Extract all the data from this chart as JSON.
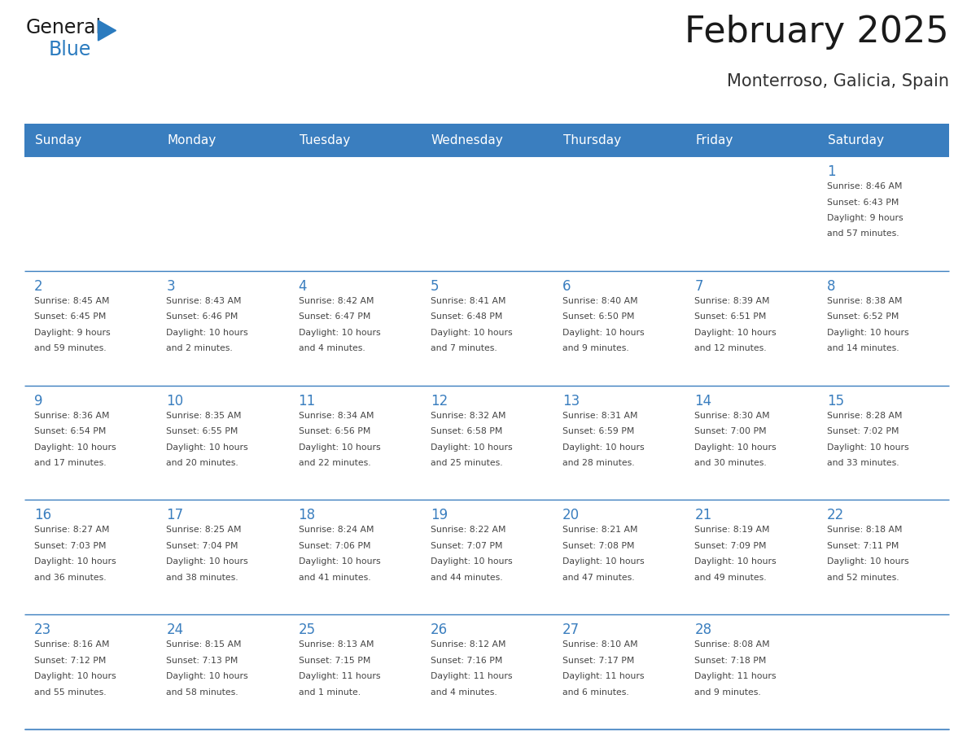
{
  "title": "February 2025",
  "subtitle": "Monterroso, Galicia, Spain",
  "header_bg": "#3a7ebf",
  "header_text_color": "#ffffff",
  "border_color": "#3a7ebf",
  "day_number_color": "#3a7ebf",
  "text_color": "#444444",
  "grid_line_color": "#aac4e0",
  "days_of_week": [
    "Sunday",
    "Monday",
    "Tuesday",
    "Wednesday",
    "Thursday",
    "Friday",
    "Saturday"
  ],
  "weeks": [
    [
      {
        "day": "",
        "info": ""
      },
      {
        "day": "",
        "info": ""
      },
      {
        "day": "",
        "info": ""
      },
      {
        "day": "",
        "info": ""
      },
      {
        "day": "",
        "info": ""
      },
      {
        "day": "",
        "info": ""
      },
      {
        "day": "1",
        "info": "Sunrise: 8:46 AM\nSunset: 6:43 PM\nDaylight: 9 hours\nand 57 minutes."
      }
    ],
    [
      {
        "day": "2",
        "info": "Sunrise: 8:45 AM\nSunset: 6:45 PM\nDaylight: 9 hours\nand 59 minutes."
      },
      {
        "day": "3",
        "info": "Sunrise: 8:43 AM\nSunset: 6:46 PM\nDaylight: 10 hours\nand 2 minutes."
      },
      {
        "day": "4",
        "info": "Sunrise: 8:42 AM\nSunset: 6:47 PM\nDaylight: 10 hours\nand 4 minutes."
      },
      {
        "day": "5",
        "info": "Sunrise: 8:41 AM\nSunset: 6:48 PM\nDaylight: 10 hours\nand 7 minutes."
      },
      {
        "day": "6",
        "info": "Sunrise: 8:40 AM\nSunset: 6:50 PM\nDaylight: 10 hours\nand 9 minutes."
      },
      {
        "day": "7",
        "info": "Sunrise: 8:39 AM\nSunset: 6:51 PM\nDaylight: 10 hours\nand 12 minutes."
      },
      {
        "day": "8",
        "info": "Sunrise: 8:38 AM\nSunset: 6:52 PM\nDaylight: 10 hours\nand 14 minutes."
      }
    ],
    [
      {
        "day": "9",
        "info": "Sunrise: 8:36 AM\nSunset: 6:54 PM\nDaylight: 10 hours\nand 17 minutes."
      },
      {
        "day": "10",
        "info": "Sunrise: 8:35 AM\nSunset: 6:55 PM\nDaylight: 10 hours\nand 20 minutes."
      },
      {
        "day": "11",
        "info": "Sunrise: 8:34 AM\nSunset: 6:56 PM\nDaylight: 10 hours\nand 22 minutes."
      },
      {
        "day": "12",
        "info": "Sunrise: 8:32 AM\nSunset: 6:58 PM\nDaylight: 10 hours\nand 25 minutes."
      },
      {
        "day": "13",
        "info": "Sunrise: 8:31 AM\nSunset: 6:59 PM\nDaylight: 10 hours\nand 28 minutes."
      },
      {
        "day": "14",
        "info": "Sunrise: 8:30 AM\nSunset: 7:00 PM\nDaylight: 10 hours\nand 30 minutes."
      },
      {
        "day": "15",
        "info": "Sunrise: 8:28 AM\nSunset: 7:02 PM\nDaylight: 10 hours\nand 33 minutes."
      }
    ],
    [
      {
        "day": "16",
        "info": "Sunrise: 8:27 AM\nSunset: 7:03 PM\nDaylight: 10 hours\nand 36 minutes."
      },
      {
        "day": "17",
        "info": "Sunrise: 8:25 AM\nSunset: 7:04 PM\nDaylight: 10 hours\nand 38 minutes."
      },
      {
        "day": "18",
        "info": "Sunrise: 8:24 AM\nSunset: 7:06 PM\nDaylight: 10 hours\nand 41 minutes."
      },
      {
        "day": "19",
        "info": "Sunrise: 8:22 AM\nSunset: 7:07 PM\nDaylight: 10 hours\nand 44 minutes."
      },
      {
        "day": "20",
        "info": "Sunrise: 8:21 AM\nSunset: 7:08 PM\nDaylight: 10 hours\nand 47 minutes."
      },
      {
        "day": "21",
        "info": "Sunrise: 8:19 AM\nSunset: 7:09 PM\nDaylight: 10 hours\nand 49 minutes."
      },
      {
        "day": "22",
        "info": "Sunrise: 8:18 AM\nSunset: 7:11 PM\nDaylight: 10 hours\nand 52 minutes."
      }
    ],
    [
      {
        "day": "23",
        "info": "Sunrise: 8:16 AM\nSunset: 7:12 PM\nDaylight: 10 hours\nand 55 minutes."
      },
      {
        "day": "24",
        "info": "Sunrise: 8:15 AM\nSunset: 7:13 PM\nDaylight: 10 hours\nand 58 minutes."
      },
      {
        "day": "25",
        "info": "Sunrise: 8:13 AM\nSunset: 7:15 PM\nDaylight: 11 hours\nand 1 minute."
      },
      {
        "day": "26",
        "info": "Sunrise: 8:12 AM\nSunset: 7:16 PM\nDaylight: 11 hours\nand 4 minutes."
      },
      {
        "day": "27",
        "info": "Sunrise: 8:10 AM\nSunset: 7:17 PM\nDaylight: 11 hours\nand 6 minutes."
      },
      {
        "day": "28",
        "info": "Sunrise: 8:08 AM\nSunset: 7:18 PM\nDaylight: 11 hours\nand 9 minutes."
      },
      {
        "day": "",
        "info": ""
      }
    ]
  ],
  "logo_text1": "General",
  "logo_text2": "Blue",
  "logo_color1": "#1a1a1a",
  "logo_color2": "#2b7bbf",
  "logo_triangle_color": "#2b7bbf",
  "fig_width": 11.88,
  "fig_height": 9.18,
  "dpi": 100
}
